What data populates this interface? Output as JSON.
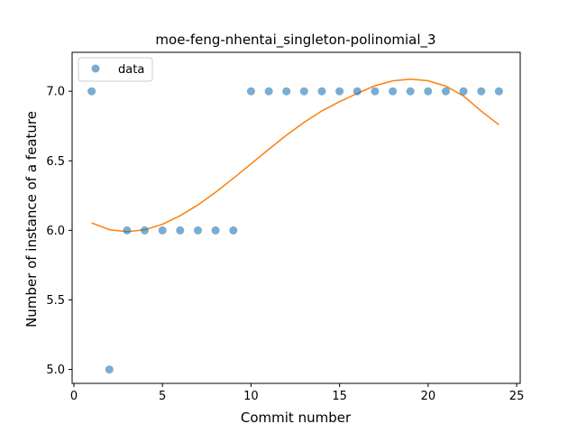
{
  "chart_data": {
    "type": "scatter",
    "title": "moe-feng-nhentai_singleton-polinomial_3",
    "xlabel": "Commit number",
    "ylabel": "Number of instance of a feature",
    "xlim": [
      -0.1,
      25.2
    ],
    "ylim": [
      4.9,
      7.28
    ],
    "xticks": [
      0,
      5,
      10,
      15,
      20,
      25
    ],
    "yticks": [
      5.0,
      5.5,
      6.0,
      6.5,
      7.0
    ],
    "xtick_labels": [
      "0",
      "5",
      "10",
      "15",
      "20",
      "25"
    ],
    "ytick_labels": [
      "5.0",
      "5.5",
      "6.0",
      "6.5",
      "7.0"
    ],
    "grid": false,
    "legend_position": "top-left",
    "series": [
      {
        "name": "data",
        "kind": "scatter",
        "color": "#1f77b4",
        "x": [
          1,
          2,
          3,
          4,
          5,
          6,
          7,
          8,
          9,
          10,
          11,
          12,
          13,
          14,
          15,
          16,
          17,
          18,
          19,
          20,
          21,
          22,
          23,
          24
        ],
        "y": [
          7,
          5,
          6,
          6,
          6,
          6,
          6,
          6,
          6,
          7,
          7,
          7,
          7,
          7,
          7,
          7,
          7,
          7,
          7,
          7,
          7,
          7,
          7,
          7
        ]
      },
      {
        "kind": "line",
        "color": "#ff7f0e",
        "x": [
          1,
          2,
          3,
          4,
          5,
          6,
          7,
          8,
          9,
          10,
          11,
          12,
          13,
          14,
          15,
          16,
          17,
          18,
          19,
          20,
          21,
          22,
          23,
          24
        ],
        "y": [
          6.054,
          6.005,
          5.99,
          6.004,
          6.044,
          6.105,
          6.183,
          6.274,
          6.374,
          6.478,
          6.583,
          6.684,
          6.777,
          6.859,
          6.925,
          6.985,
          7.04,
          7.075,
          7.087,
          7.076,
          7.037,
          6.966,
          6.857,
          6.759
        ]
      }
    ]
  }
}
